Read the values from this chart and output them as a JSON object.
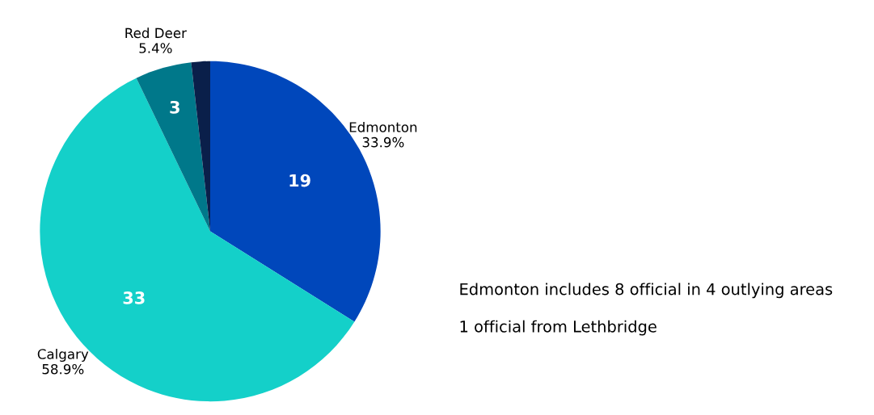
{
  "chart_data": {
    "type": "pie",
    "categories": [
      "Edmonton\n33.9%",
      "Calgary\n58.9%",
      "Red Deer\n5.4%",
      null
    ],
    "values": [
      19,
      33,
      3,
      1
    ],
    "colors": [
      "#0047bb",
      "#14d0c9",
      "#00788a",
      "#0a1f4a"
    ],
    "value_labels": [
      "19",
      "33",
      "3",
      null
    ],
    "annotations": [
      "Edmonton includes 8 official in 4 outlying areas",
      "1 official from Lethbridge"
    ]
  }
}
